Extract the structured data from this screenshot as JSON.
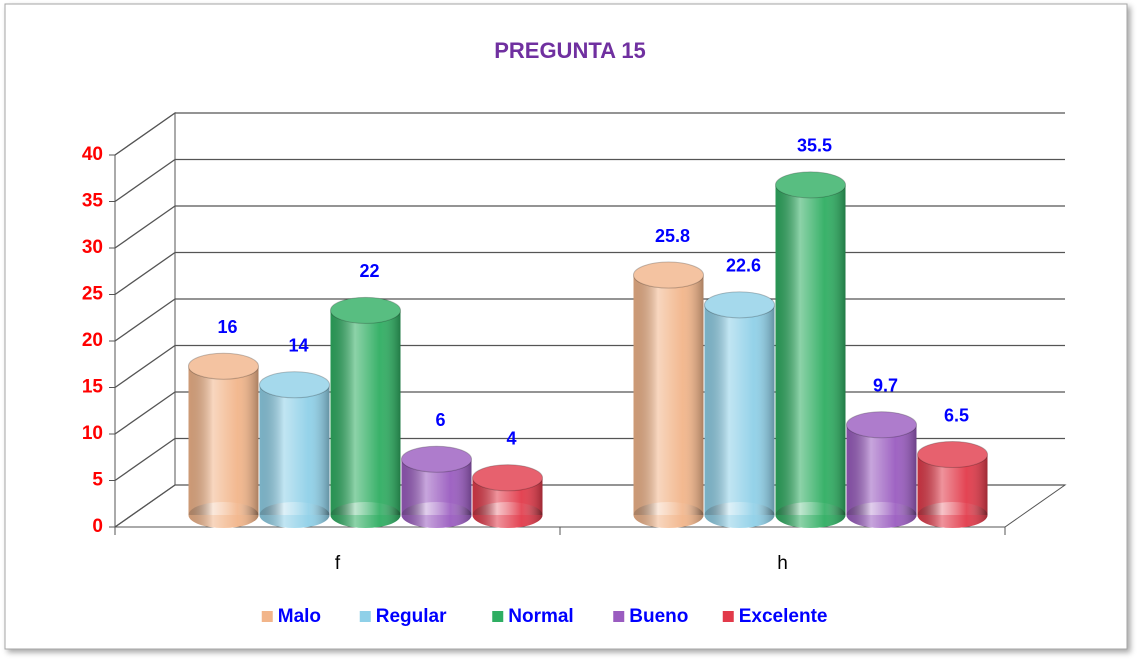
{
  "chart_data": {
    "type": "bar3d",
    "title": "PREGUNTA 15",
    "categories": [
      "f",
      "h"
    ],
    "series": [
      {
        "name": "Malo",
        "color": "#f2b58a",
        "values": [
          16,
          25.8
        ]
      },
      {
        "name": "Regular",
        "color": "#8fd0e8",
        "values": [
          14,
          22.6
        ]
      },
      {
        "name": "Normal",
        "color": "#2fae62",
        "values": [
          22,
          35.5
        ]
      },
      {
        "name": "Bueno",
        "color": "#9a5cc0",
        "values": [
          6,
          9.7
        ]
      },
      {
        "name": "Excelente",
        "color": "#e23a4a",
        "values": [
          4,
          6.5
        ]
      }
    ],
    "ylim": [
      0,
      40
    ],
    "yticks": [
      0,
      5,
      10,
      15,
      20,
      25,
      30,
      35,
      40
    ],
    "grid": true,
    "legend": "bottom"
  }
}
